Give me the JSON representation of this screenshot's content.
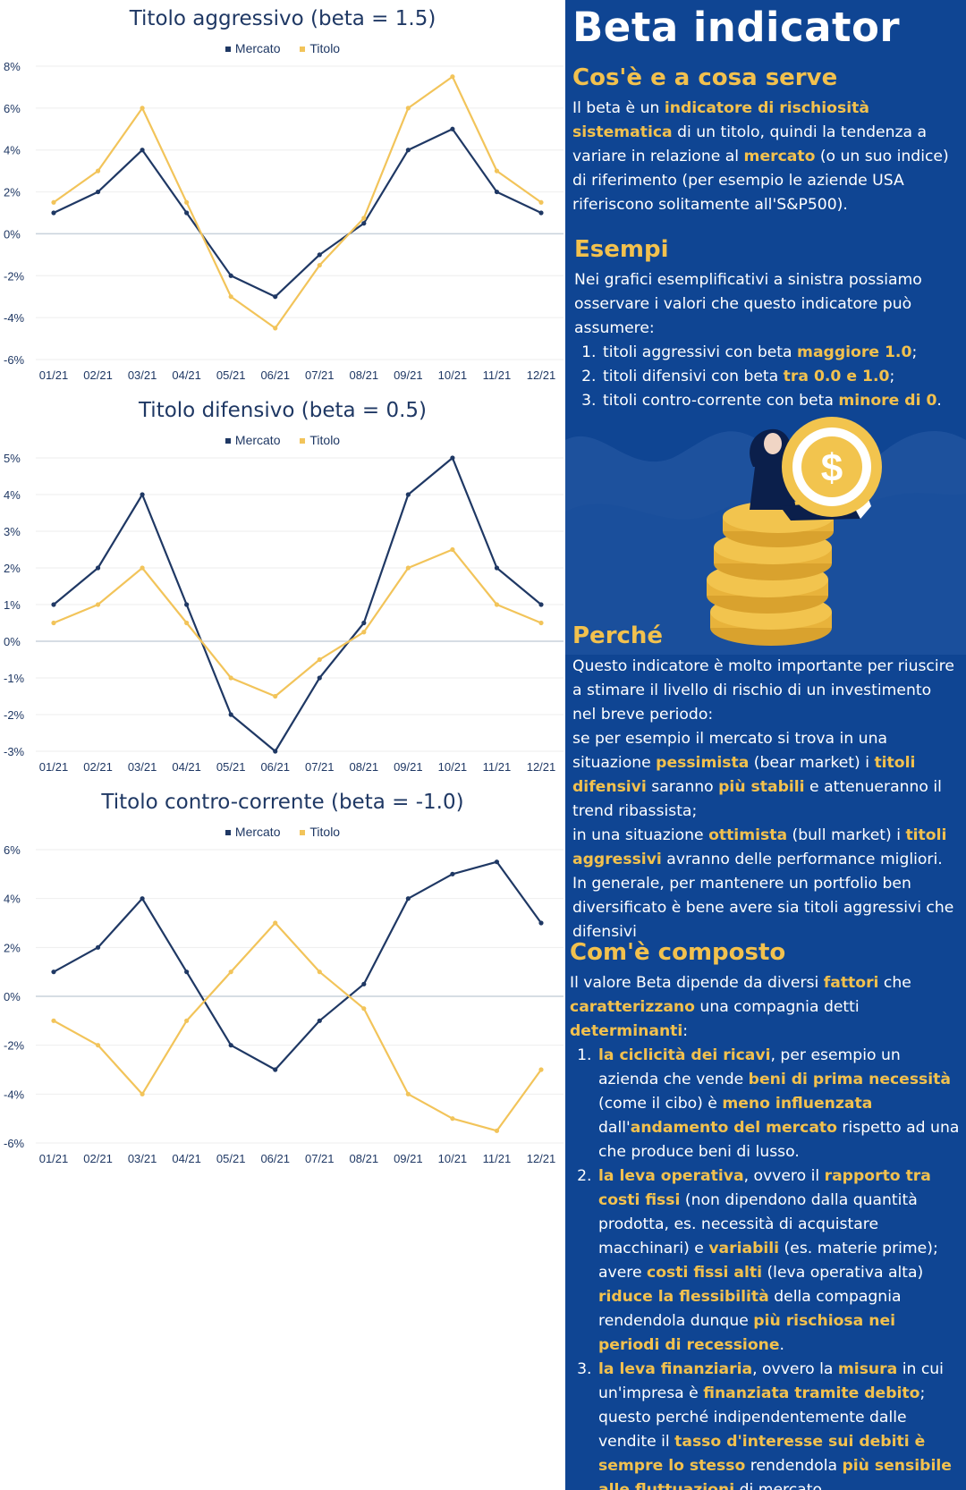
{
  "charts_section": {
    "legend": {
      "market": "Mercato",
      "stock": "Titolo"
    },
    "colors": {
      "market": "#1f3864",
      "stock": "#f2c45a",
      "axis_text": "#1f3864",
      "zero_line": "#c9d2dc",
      "grid": "#eeeeee"
    }
  },
  "chart_data": [
    {
      "type": "line",
      "title": "Titolo aggressivo (beta = 1.5)",
      "categories": [
        "01/21",
        "02/21",
        "03/21",
        "04/21",
        "05/21",
        "06/21",
        "07/21",
        "08/21",
        "09/21",
        "10/21",
        "11/21",
        "12/21"
      ],
      "yticks": [
        "8%",
        "6%",
        "4%",
        "2%",
        "0%",
        "-2%",
        "-4%",
        "-6%"
      ],
      "ylim": [
        -6,
        8
      ],
      "series": [
        {
          "name": "Mercato",
          "values": [
            1,
            2,
            4,
            1,
            -2,
            -3,
            -1,
            0.5,
            4,
            5,
            2,
            1
          ]
        },
        {
          "name": "Titolo",
          "values": [
            1.5,
            3,
            6,
            1.5,
            -3,
            -4.5,
            -1.5,
            0.75,
            6,
            7.5,
            3,
            1.5
          ]
        }
      ],
      "legend": "top-center",
      "grid": true
    },
    {
      "type": "line",
      "title": "Titolo difensivo (beta = 0.5)",
      "categories": [
        "01/21",
        "02/21",
        "03/21",
        "04/21",
        "05/21",
        "06/21",
        "07/21",
        "08/21",
        "09/21",
        "10/21",
        "11/21",
        "12/21"
      ],
      "yticks": [
        "5%",
        "4%",
        "3%",
        "2%",
        "1%",
        "0%",
        "-1%",
        "-2%",
        "-3%"
      ],
      "ylim": [
        -3,
        5
      ],
      "series": [
        {
          "name": "Mercato",
          "values": [
            1,
            2,
            4,
            1,
            -2,
            -3,
            -1,
            0.5,
            4,
            5,
            2,
            1
          ]
        },
        {
          "name": "Titolo",
          "values": [
            0.5,
            1,
            2,
            0.5,
            -1,
            -1.5,
            -0.5,
            0.25,
            2,
            2.5,
            1,
            0.5
          ]
        }
      ],
      "legend": "top-center",
      "grid": true
    },
    {
      "type": "line",
      "title": "Titolo contro-corrente (beta = -1.0)",
      "categories": [
        "01/21",
        "02/21",
        "03/21",
        "04/21",
        "05/21",
        "06/21",
        "07/21",
        "08/21",
        "09/21",
        "10/21",
        "11/21",
        "12/21"
      ],
      "yticks": [
        "6%",
        "4%",
        "2%",
        "0%",
        "-2%",
        "-4%",
        "-6%"
      ],
      "ylim": [
        -6,
        6
      ],
      "series": [
        {
          "name": "Mercato",
          "values": [
            1,
            2,
            4,
            1,
            -2,
            -3,
            -1,
            0.5,
            4,
            5,
            5.5,
            3
          ]
        },
        {
          "name": "Titolo",
          "values": [
            -1,
            -2,
            -4,
            -1,
            1,
            3,
            1,
            -0.5,
            -4,
            -5,
            -5.5,
            -3
          ]
        }
      ],
      "legend": "top-center",
      "grid": true
    }
  ],
  "panel": {
    "title": "Beta indicator",
    "colors": {
      "background": "#0f4593",
      "accent": "#f2c14e",
      "text": "#ffffff"
    },
    "section1": {
      "heading": "Cos'è e a cosa serve",
      "t1": "Il beta è un ",
      "b1": "indicatore di rischiosità sistematica",
      "t2": " di un titolo, quindi la tendenza a variare in relazione al ",
      "b2": "mercato",
      "t3": " (o un suo indice) di riferimento (per esempio le aziende USA riferiscono solitamente all'S&P500)."
    },
    "section2": {
      "heading": "Esempi",
      "intro": "Nei grafici esemplificativi a sinistra possiamo osservare i valori che questo indicatore può assumere:",
      "items": [
        {
          "t": "titoli aggressivi con beta ",
          "b": "maggiore 1.0",
          "e": ";"
        },
        {
          "t": "titoli difensivi con beta ",
          "b": "tra 0.0 e 1.0",
          "e": ";"
        },
        {
          "t": "titoli contro-corrente con beta ",
          "b": "minore di 0",
          "e": "."
        }
      ]
    },
    "illustration": {
      "icon": "person-sitting-on-coins-icon",
      "coin_symbol": "$"
    },
    "section3": {
      "heading": "Perché",
      "p1": "Questo indicatore è molto importante per riuscire a stimare il livello di rischio di un investimento nel breve periodo:",
      "p2a": "se per esempio il mercato si trova in una situazione ",
      "p2b": "pessimista",
      "p2c": " (bear market) i ",
      "p2d": "titoli difensivi",
      "p2e": " saranno ",
      "p2f": "più stabili",
      "p2g": " e attenueranno il trend ribassista;",
      "p3a": "in una situazione ",
      "p3b": "ottimista",
      "p3c": " (bull market) i ",
      "p3d": "titoli aggressivi",
      "p3e": " avranno delle performance migliori.",
      "p4": "In generale, per mantenere un portfolio ben diversificato è bene avere sia titoli aggressivi che difensivi"
    },
    "section4": {
      "heading": "Com'è composto",
      "i1": "Il valore Beta dipende da diversi ",
      "i2": "fattori",
      "i3": " che ",
      "i4": "caratterizzano",
      "i5": " una compagnia detti ",
      "i6": "determinanti",
      "i7": ":",
      "item1": {
        "a": "la ciclicità dei ricavi",
        "b": ", per esempio un azienda che vende ",
        "c": "beni di prima necessità",
        "d": " (come il cibo) è ",
        "e": "meno influenzata",
        "f": " dall'",
        "g": "andamento del mercato",
        "h": " rispetto ad una che produce beni di lusso."
      },
      "item2": {
        "a": "la leva operativa",
        "b": ", ovvero il ",
        "c": "rapporto tra costi fissi",
        "d": " (non dipendono dalla quantità prodotta, es. necessità di acquistare macchinari) e ",
        "e": "variabili",
        "f": " (es. materie prime); avere ",
        "g": "costi fissi alti",
        "h": " (leva operativa alta) ",
        "i": "riduce la flessibilità",
        "j": " della compagnia rendendola dunque ",
        "k": "più rischiosa nei periodi di recessione",
        "l": "."
      },
      "item3": {
        "a": "la leva finanziaria",
        "b": ", ovvero la ",
        "c": "misura",
        "d": " in cui un'impresa è ",
        "e": "finanziata tramite debito",
        "f": "; questo perché indipendentemente dalle vendite il ",
        "g": "tasso d'interesse sui debiti è sempre lo stesso",
        "h": " rendendola ",
        "i": "più sensibile alle fluttuazioni",
        "j": " di mercato."
      }
    }
  }
}
